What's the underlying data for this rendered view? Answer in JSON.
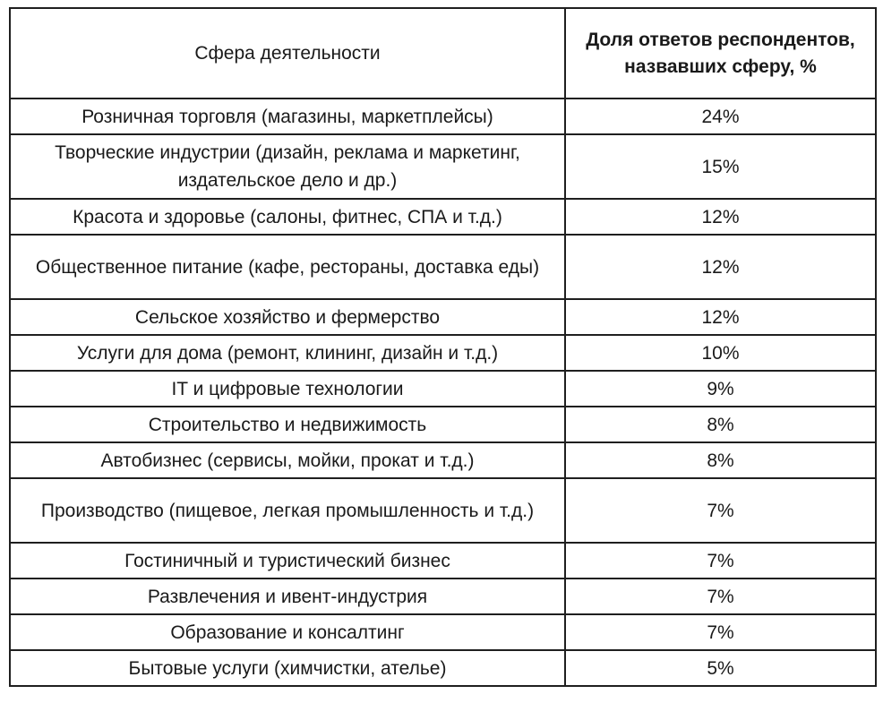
{
  "table": {
    "headers": {
      "sphere": "Сфера деятельности",
      "share": "Доля ответов респондентов, назвавших сферу, %"
    },
    "rows": [
      {
        "sphere": "Розничная торговля (магазины, маркетплейсы)",
        "share": "24%",
        "tall": false
      },
      {
        "sphere": "Творческие индустрии (дизайн, реклама и маркетинг, издательское дело и др.)",
        "share": "15%",
        "tall": true
      },
      {
        "sphere": "Красота и здоровье (салоны, фитнес, СПА и т.д.)",
        "share": "12%",
        "tall": false
      },
      {
        "sphere": "Общественное питание (кафе, рестораны, доставка еды)",
        "share": "12%",
        "tall": true
      },
      {
        "sphere": "Сельское хозяйство и фермерство",
        "share": "12%",
        "tall": false
      },
      {
        "sphere": "Услуги для дома (ремонт, клининг, дизайн и т.д.)",
        "share": "10%",
        "tall": false
      },
      {
        "sphere": "IT и цифровые технологии",
        "share": "9%",
        "tall": false
      },
      {
        "sphere": "Строительство и недвижимость",
        "share": "8%",
        "tall": false
      },
      {
        "sphere": "Автобизнес (сервисы, мойки, прокат и т.д.)",
        "share": "8%",
        "tall": false
      },
      {
        "sphere": "Производство (пищевое, легкая промышленность и т.д.)",
        "share": "7%",
        "tall": true
      },
      {
        "sphere": "Гостиничный и туристический бизнес",
        "share": "7%",
        "tall": false
      },
      {
        "sphere": "Развлечения и ивент-индустрия",
        "share": "7%",
        "tall": false
      },
      {
        "sphere": "Образование и консалтинг",
        "share": "7%",
        "tall": false
      },
      {
        "sphere": "Бытовые услуги (химчистки, ателье)",
        "share": "5%",
        "tall": false
      }
    ]
  }
}
